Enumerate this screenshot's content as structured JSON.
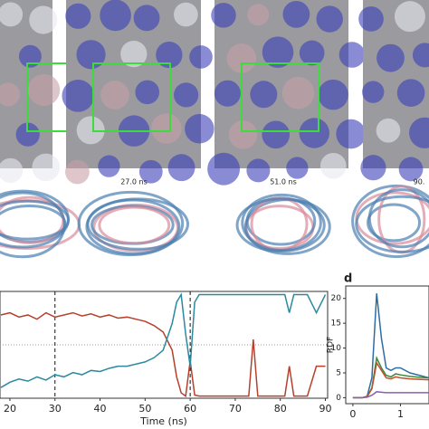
{
  "network_labels": [
    "27.0 ns",
    "51.0 ns",
    "90."
  ],
  "chart_data": [
    {
      "type": "line",
      "x_label": "Time (ns)",
      "x": [
        18,
        20,
        22,
        24,
        26,
        28,
        30,
        32,
        34,
        36,
        38,
        40,
        42,
        44,
        46,
        48,
        50,
        52,
        54,
        56,
        57,
        58,
        59,
        60,
        61,
        62,
        66,
        70,
        73,
        74,
        75,
        78,
        81,
        82,
        83,
        86,
        88,
        90
      ],
      "series": [
        {
          "color": "#b5412c",
          "values": [
            0.78,
            0.8,
            0.76,
            0.78,
            0.74,
            0.8,
            0.76,
            0.78,
            0.8,
            0.77,
            0.79,
            0.76,
            0.78,
            0.75,
            0.76,
            0.74,
            0.72,
            0.68,
            0.62,
            0.45,
            0.2,
            0.05,
            0.02,
            0.35,
            0.03,
            0.02,
            0.02,
            0.02,
            0.02,
            0.55,
            0.02,
            0.02,
            0.02,
            0.3,
            0.02,
            0.02,
            0.3,
            0.3
          ]
        },
        {
          "color": "#2b8a9e",
          "values": [
            0.1,
            0.15,
            0.18,
            0.16,
            0.2,
            0.17,
            0.22,
            0.2,
            0.24,
            0.22,
            0.26,
            0.25,
            0.28,
            0.3,
            0.3,
            0.32,
            0.34,
            0.38,
            0.45,
            0.7,
            0.9,
            0.97,
            0.6,
            0.3,
            0.9,
            0.97,
            0.97,
            0.97,
            0.97,
            0.97,
            0.97,
            0.97,
            0.97,
            0.8,
            0.97,
            0.97,
            0.8,
            0.97
          ]
        }
      ],
      "xlim": [
        17.8,
        90.5
      ],
      "ylim": [
        0,
        1
      ],
      "xticks": [
        20,
        30,
        40,
        50,
        60,
        70,
        80,
        90
      ],
      "vlines": [
        30,
        60
      ],
      "hlines": [
        0.5
      ]
    },
    {
      "type": "line",
      "panel_label": "d",
      "y_label": "RDF",
      "x": [
        0,
        0.2,
        0.3,
        0.4,
        0.5,
        0.6,
        0.7,
        0.8,
        0.9,
        1.0,
        1.2,
        1.4,
        1.6
      ],
      "series": [
        {
          "color": "#2e6da4",
          "values": [
            0,
            0,
            0.3,
            4,
            21,
            12,
            6,
            5.5,
            6,
            6,
            5,
            4.5,
            4
          ]
        },
        {
          "color": "#3a8a3a",
          "values": [
            0,
            0,
            0.2,
            2,
            8,
            6,
            4.5,
            4.2,
            4.8,
            4.6,
            4.3,
            4.1,
            4
          ]
        },
        {
          "color": "#c0502a",
          "values": [
            0,
            0,
            0.2,
            1.8,
            7,
            5.5,
            4,
            3.8,
            4.2,
            4,
            3.8,
            3.7,
            3.6
          ]
        },
        {
          "color": "#8a5fb0",
          "values": [
            0,
            0,
            0.1,
            0.5,
            1.2,
            1.1,
            1,
            1,
            1,
            1,
            1,
            1,
            1
          ]
        }
      ],
      "xlim": [
        -0.15,
        1.6
      ],
      "ylim": [
        -1.2,
        22.5
      ],
      "xticks": [
        0,
        1
      ],
      "yticks": [
        0,
        5,
        10,
        15,
        20
      ]
    }
  ]
}
